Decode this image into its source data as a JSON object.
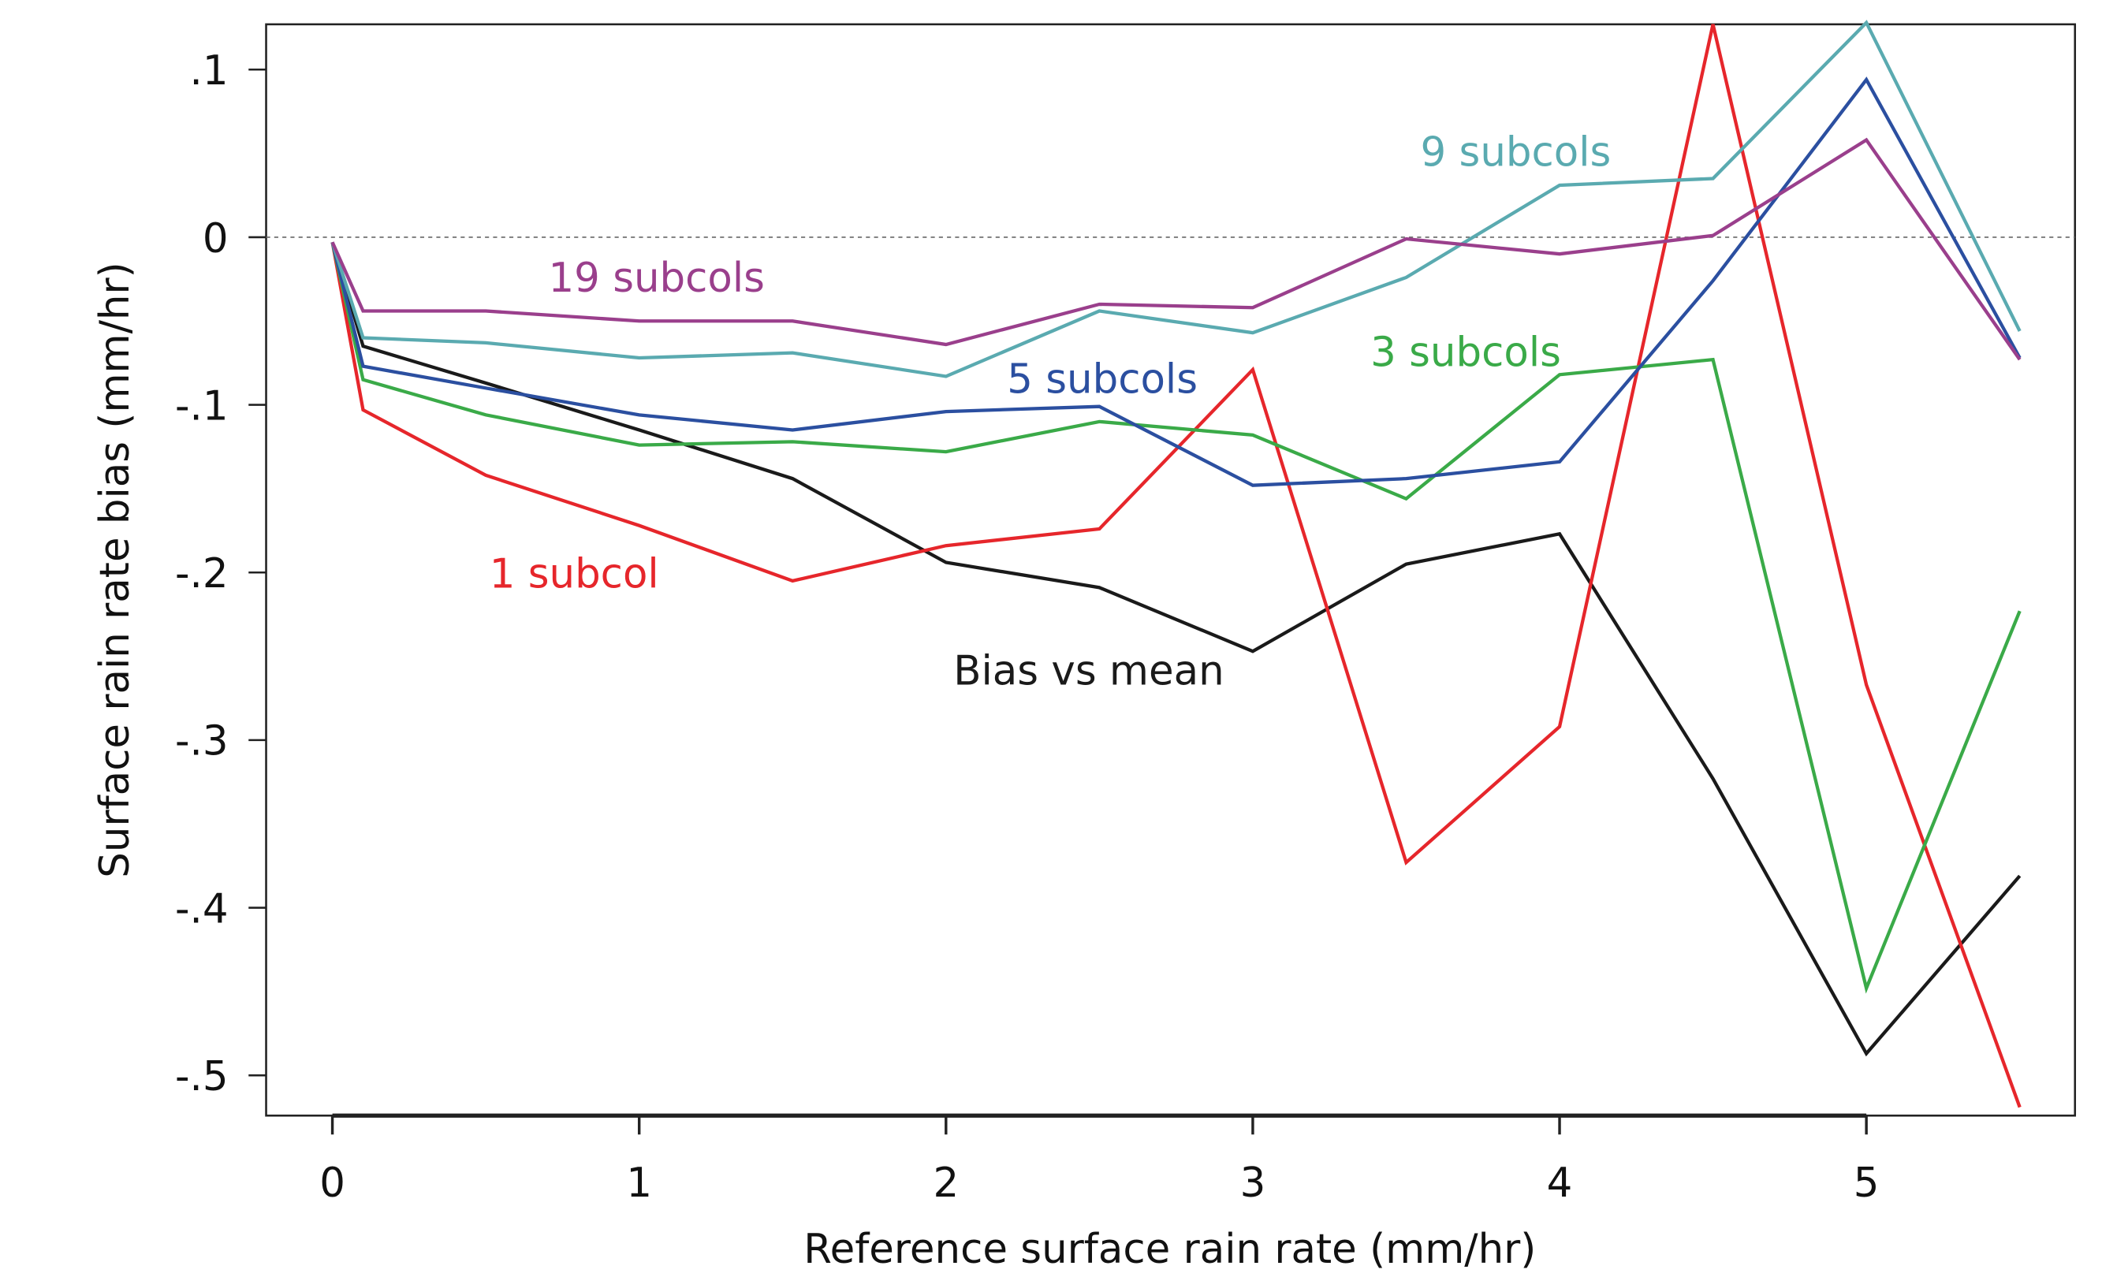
{
  "chart_data": {
    "type": "line",
    "x_label": "Reference surface rain rate (mm/hr)",
    "y_label": "Surface rain rate bias (mm/hr)",
    "x": [
      0,
      0.1,
      0.5,
      1,
      1.5,
      2,
      2.5,
      3,
      3.5,
      4,
      4.5,
      5,
      5.5
    ],
    "series": [
      {
        "name": "Bias vs mean",
        "color": "#1a1a1a",
        "values": [
          -0.003,
          -0.065,
          -0.087,
          -0.115,
          -0.144,
          -0.194,
          -0.209,
          -0.247,
          -0.195,
          -0.177,
          -0.323,
          -0.487,
          -0.381
        ]
      },
      {
        "name": "1 subcol",
        "color": "#e6262b",
        "values": [
          -0.003,
          -0.103,
          -0.142,
          -0.172,
          -0.205,
          -0.184,
          -0.174,
          -0.079,
          -0.373,
          -0.292,
          0.127,
          -0.267,
          -0.519
        ]
      },
      {
        "name": "3 subcols",
        "color": "#3aaa48",
        "values": [
          -0.003,
          -0.085,
          -0.106,
          -0.124,
          -0.122,
          -0.128,
          -0.11,
          -0.118,
          -0.156,
          -0.082,
          -0.073,
          -0.448,
          -0.223
        ]
      },
      {
        "name": "5 subcols",
        "color": "#2b4fa0",
        "values": [
          -0.003,
          -0.077,
          -0.09,
          -0.106,
          -0.115,
          -0.104,
          -0.101,
          -0.148,
          -0.144,
          -0.134,
          -0.026,
          0.094,
          -0.072
        ]
      },
      {
        "name": "9 subcols",
        "color": "#5aaab0",
        "values": [
          -0.003,
          -0.06,
          -0.063,
          -0.072,
          -0.069,
          -0.083,
          -0.044,
          -0.057,
          -0.024,
          0.031,
          0.035,
          0.128,
          -0.056
        ]
      },
      {
        "name": "19 subcols",
        "color": "#9a3f8c",
        "values": [
          -0.003,
          -0.044,
          -0.044,
          -0.05,
          -0.05,
          -0.064,
          -0.04,
          -0.042,
          -0.001,
          -0.01,
          0.001,
          0.058,
          -0.073
        ]
      }
    ],
    "xlim": [
      -0.216,
      5.68
    ],
    "ylim": [
      -0.524,
      0.127
    ],
    "xticks": [
      0,
      1,
      2,
      3,
      4,
      5
    ],
    "yticks": [
      {
        "value": 0.1,
        "label": ".1"
      },
      0,
      {
        "value": -0.1,
        "label": "-.1"
      },
      {
        "value": -0.2,
        "label": "-.2"
      },
      {
        "value": -0.3,
        "label": "-.3"
      },
      {
        "value": -0.4,
        "label": "-.4"
      },
      {
        "value": -0.5,
        "label": "-.5"
      }
    ],
    "reference_line": 0,
    "legend": false
  }
}
